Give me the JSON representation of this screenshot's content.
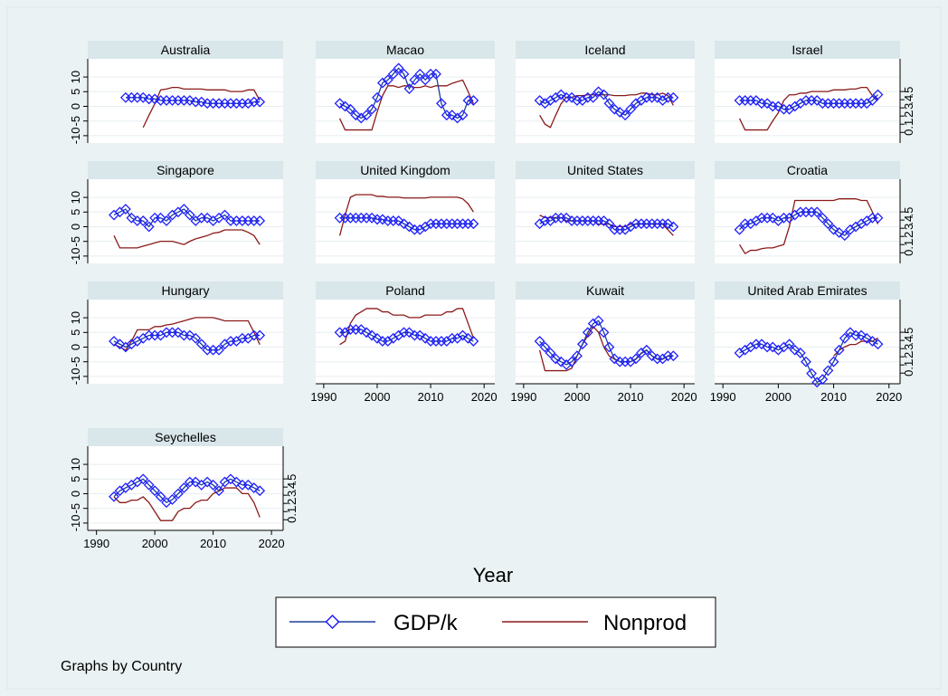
{
  "chart_data": {
    "type": "line",
    "x_label": "Year",
    "note": "Graphs by Country",
    "x": [
      1993,
      1994,
      1995,
      1996,
      1997,
      1998,
      1999,
      2000,
      2001,
      2002,
      2003,
      2004,
      2005,
      2006,
      2007,
      2008,
      2009,
      2010,
      2011,
      2012,
      2013,
      2014,
      2015,
      2016,
      2017,
      2018
    ],
    "xlim": [
      1988.5,
      2022
    ],
    "xticks": [
      1990,
      2000,
      2010,
      2020
    ],
    "ylim": [
      -12.5,
      16.2
    ],
    "yticks": [
      -10,
      -5,
      0,
      5,
      10
    ],
    "y2lim": [
      -0.13,
      0.9
    ],
    "y2ticks": [
      0,
      {
        "value": 0.1,
        "label": ".1"
      },
      {
        "value": 0.2,
        "label": ".2"
      },
      {
        "value": 0.3,
        "label": ".3"
      },
      {
        "value": 0.4,
        "label": ".4"
      },
      {
        "value": 0.5,
        "label": ".5"
      }
    ],
    "grid": true,
    "series": [
      {
        "name": "GDP/k",
        "color": "#1a3f9a",
        "marker": "diamond",
        "marker_color": "#1f1fff"
      },
      {
        "name": "Nonprod",
        "color": "#8b1a1a",
        "axis": "y2"
      }
    ],
    "panels": [
      {
        "title": "Australia",
        "series": [
          {
            "values": [
              null,
              null,
              3,
              3,
              3,
              3,
              2.5,
              2.5,
              2,
              2,
              2,
              2,
              2,
              2,
              1.5,
              1.5,
              1,
              1,
              1,
              1,
              1,
              1,
              1,
              1,
              1.5,
              1.5
            ]
          },
          {
            "values": [
              null,
              null,
              null,
              null,
              null,
              0.06,
              0.21,
              0.35,
              0.52,
              0.53,
              0.55,
              0.55,
              0.53,
              0.53,
              0.53,
              0.53,
              0.52,
              0.52,
              0.52,
              0.52,
              0.5,
              0.5,
              0.5,
              0.52,
              0.52,
              0.39
            ]
          }
        ]
      },
      {
        "title": "Macao",
        "series": [
          {
            "values": [
              1,
              0,
              -1,
              -3,
              -4,
              -3,
              -1,
              3,
              8,
              9,
              11,
              13,
              11,
              6,
              9,
              11,
              9,
              11,
              11,
              1,
              -3,
              -3,
              -4,
              -3,
              2,
              2
            ]
          },
          {
            "values": [
              0.17,
              0.03,
              0.03,
              0.03,
              0.03,
              0.03,
              0.03,
              0.25,
              0.45,
              0.57,
              0.57,
              0.55,
              0.57,
              0.57,
              0.55,
              0.55,
              0.57,
              0.55,
              0.57,
              0.57,
              0.57,
              0.6,
              0.62,
              0.64,
              0.5,
              0.35
            ]
          }
        ]
      },
      {
        "title": "Iceland",
        "series": [
          {
            "values": [
              2,
              1,
              2,
              3,
              4,
              3,
              3,
              2,
              2,
              3,
              3,
              5,
              4,
              1,
              -1,
              -2,
              -3,
              -1,
              1,
              2,
              3,
              3,
              3,
              2,
              3,
              3
            ]
          },
          {
            "values": [
              0.21,
              0.1,
              0.06,
              0.21,
              0.35,
              0.43,
              0.43,
              0.45,
              0.45,
              0.46,
              0.46,
              0.46,
              0.46,
              0.46,
              0.45,
              0.45,
              0.45,
              0.46,
              0.46,
              0.48,
              0.48,
              0.46,
              0.46,
              0.48,
              0.45,
              0.33
            ]
          }
        ]
      },
      {
        "title": "Israel",
        "series": [
          {
            "values": [
              2,
              2,
              2,
              2,
              1,
              1,
              0,
              0,
              -1,
              -1,
              0,
              1,
              2,
              2,
              2,
              1,
              1,
              1,
              1,
              1,
              1,
              1,
              1,
              1,
              2,
              4
            ]
          },
          {
            "values": [
              0.17,
              0.03,
              0.03,
              0.03,
              0.03,
              0.03,
              0.14,
              0.24,
              0.39,
              0.46,
              0.46,
              0.48,
              0.48,
              0.5,
              0.5,
              0.5,
              0.5,
              0.52,
              0.52,
              0.52,
              0.53,
              0.53,
              0.55,
              0.55,
              0.45,
              0.39
            ]
          }
        ]
      },
      {
        "title": "Singapore",
        "series": [
          {
            "values": [
              4,
              5,
              6,
              3,
              2,
              2,
              0,
              3,
              3,
              2,
              4,
              5,
              6,
              4,
              2,
              3,
              3,
              2,
              3,
              4,
              2,
              2,
              2,
              2,
              2,
              2
            ]
          },
          {
            "values": [
              0.21,
              0.06,
              0.06,
              0.06,
              0.06,
              0.08,
              0.1,
              0.12,
              0.14,
              0.14,
              0.14,
              0.12,
              0.1,
              0.14,
              0.17,
              0.19,
              0.21,
              0.24,
              0.25,
              0.28,
              0.28,
              0.28,
              0.28,
              0.25,
              0.21,
              0.1
            ]
          }
        ]
      },
      {
        "title": "United Kingdom",
        "series": [
          {
            "values": [
              3,
              3,
              3,
              3,
              3,
              3,
              3,
              2.5,
              2.5,
              2,
              2,
              2,
              1,
              0,
              -1,
              -1,
              0,
              1,
              1,
              1,
              1,
              1,
              1,
              1,
              1,
              1
            ]
          },
          {
            "values": [
              0.21,
              0.46,
              0.68,
              0.71,
              0.71,
              0.71,
              0.71,
              0.69,
              0.69,
              0.68,
              0.68,
              0.68,
              0.67,
              0.67,
              0.67,
              0.67,
              0.67,
              0.68,
              0.68,
              0.68,
              0.68,
              0.68,
              0.68,
              0.66,
              0.6,
              0.5
            ]
          }
        ]
      },
      {
        "title": "United States",
        "series": [
          {
            "values": [
              1,
              2,
              2,
              3,
              3,
              3,
              2,
              2,
              2,
              2,
              2,
              2,
              2,
              1,
              -1,
              -1,
              -1,
              0,
              1,
              1,
              1,
              1,
              1,
              1,
              1,
              0
            ]
          },
          {
            "values": [
              0.46,
              0.43,
              0.43,
              0.43,
              0.43,
              0.39,
              0.39,
              0.39,
              0.39,
              0.39,
              0.39,
              0.35,
              0.35,
              0.35,
              0.32,
              0.32,
              0.32,
              0.35,
              0.35,
              0.35,
              0.35,
              0.35,
              0.35,
              0.35,
              0.28,
              0.21
            ]
          }
        ]
      },
      {
        "title": "Croatia",
        "series": [
          {
            "values": [
              -1,
              1,
              1,
              2,
              3,
              3,
              3,
              2,
              3,
              3,
              4,
              5,
              5,
              5,
              5,
              3,
              1,
              -1,
              -2,
              -3,
              -1,
              0,
              1,
              2,
              3,
              3
            ]
          },
          {
            "values": [
              0.1,
              -0.01,
              0.03,
              0.03,
              0.05,
              0.06,
              0.06,
              0.08,
              0.1,
              0.32,
              0.64,
              0.64,
              0.64,
              0.64,
              0.64,
              0.64,
              0.64,
              0.64,
              0.66,
              0.66,
              0.66,
              0.66,
              0.64,
              0.64,
              0.5,
              0.35
            ]
          }
        ]
      },
      {
        "title": "Hungary",
        "series": [
          {
            "values": [
              2,
              1,
              0,
              1,
              2,
              3,
              4,
              4,
              4,
              5,
              5,
              5,
              4,
              4,
              3,
              1,
              -1,
              -1,
              -1,
              1,
              2,
              2,
              3,
              3,
              4,
              4
            ]
          },
          {
            "values": [
              0.35,
              0.32,
              0.28,
              0.39,
              0.53,
              0.53,
              0.53,
              0.57,
              0.57,
              0.59,
              0.6,
              0.62,
              0.64,
              0.66,
              0.68,
              0.68,
              0.68,
              0.68,
              0.66,
              0.64,
              0.64,
              0.64,
              0.64,
              0.64,
              0.5,
              0.35
            ]
          }
        ]
      },
      {
        "title": "Poland",
        "series": [
          {
            "values": [
              5,
              5,
              6,
              6,
              6,
              5,
              4,
              3,
              2,
              2,
              3,
              4,
              5,
              5,
              4,
              4,
              3,
              2,
              2,
              2,
              2,
              3,
              3,
              4,
              3,
              2
            ]
          },
          {
            "values": [
              0.35,
              0.39,
              0.61,
              0.71,
              0.75,
              0.79,
              0.79,
              0.79,
              0.75,
              0.75,
              0.71,
              0.71,
              0.71,
              0.68,
              0.68,
              0.68,
              0.71,
              0.71,
              0.71,
              0.71,
              0.75,
              0.75,
              0.79,
              0.79,
              0.61,
              0.43
            ]
          }
        ]
      },
      {
        "title": "Kuwait",
        "series": [
          {
            "values": [
              2,
              0,
              -2,
              -4,
              -5,
              -6,
              -5,
              -3,
              1,
              5,
              8,
              9,
              5,
              0,
              -4,
              -5,
              -5,
              -5,
              -4,
              -2,
              -1,
              -3,
              -4,
              -4,
              -3,
              -3
            ]
          },
          {
            "values": [
              0.28,
              0.03,
              0.03,
              0.03,
              0.03,
              0.03,
              0.06,
              0.21,
              0.35,
              0.46,
              0.57,
              0.5,
              0.32,
              0.21,
              0.17,
              0.14,
              0.14,
              0.14,
              0.17,
              0.24,
              0.28,
              0.21,
              0.17,
              0.17,
              0.21,
              0.21
            ]
          }
        ]
      },
      {
        "title": "United Arab Emirates",
        "series": [
          {
            "values": [
              -2,
              -1,
              0,
              1,
              1,
              0,
              0,
              -1,
              0,
              1,
              -1,
              -2,
              -5,
              -9,
              -12,
              -11,
              -8,
              -5,
              -1,
              3,
              5,
              4,
              4,
              3,
              2,
              1
            ]
          },
          {
            "values": [
              null,
              null,
              null,
              null,
              null,
              null,
              null,
              null,
              null,
              null,
              null,
              null,
              null,
              null,
              null,
              null,
              null,
              0.21,
              0.28,
              0.32,
              0.35,
              0.35,
              0.39,
              0.39,
              0.39,
              0.43
            ]
          }
        ]
      },
      {
        "title": "Seychelles",
        "series": [
          {
            "values": [
              -1,
              1,
              2,
              3,
              4,
              5,
              3,
              1,
              -1,
              -3,
              -2,
              0,
              2,
              4,
              4,
              3,
              4,
              3,
              1,
              4,
              5,
              4,
              3,
              3,
              2,
              1
            ]
          },
          {
            "values": [
              0.28,
              0.21,
              0.21,
              0.24,
              0.24,
              0.28,
              0.21,
              0.1,
              -0.01,
              -0.01,
              -0.01,
              0.1,
              0.14,
              0.14,
              0.21,
              0.24,
              0.24,
              0.32,
              0.35,
              0.39,
              0.39,
              0.39,
              0.32,
              0.32,
              0.21,
              0.03
            ]
          }
        ]
      }
    ]
  }
}
